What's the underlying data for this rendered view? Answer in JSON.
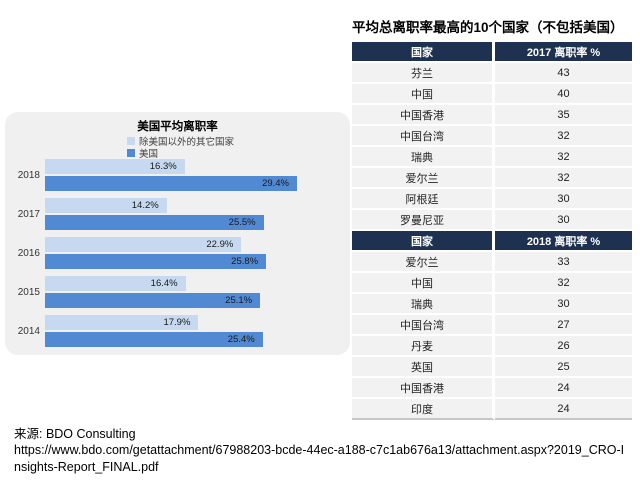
{
  "page": {
    "source_label": "来源: BDO Consulting",
    "source_url": "https://www.bdo.com/getattachment/67988203-bcde-44ec-a188-c7c1ab676a13/attachment.aspx?2019_CRO-Insights-Report_FINAL.pdf"
  },
  "colors": {
    "header_navy": "#1f3151",
    "row_gray": "#f2f2f2",
    "panel_gray": "#f0f0f0",
    "bar_light_blue": "#c6d9f0",
    "bar_dark_blue": "#5189d3"
  },
  "chart_data": [
    {
      "type": "bar",
      "orientation": "horizontal",
      "title": "美国平均离职率",
      "categories": [
        "2018",
        "2017",
        "2016",
        "2015",
        "2014"
      ],
      "series": [
        {
          "name": "除美国以外的其它国家",
          "values": [
            16.3,
            14.2,
            22.9,
            16.4,
            17.9
          ]
        },
        {
          "name": "美国",
          "values": [
            29.4,
            25.5,
            25.8,
            25.1,
            25.4
          ]
        }
      ],
      "value_format": "percent",
      "data_labels": true,
      "xlim": [
        0,
        30
      ],
      "legend_position": "top",
      "grid": false
    },
    {
      "type": "table",
      "title": "平均总离职率最高的10个国家（不包括美国）",
      "sections": [
        {
          "columns": [
            "国家",
            "2017 离职率 %"
          ],
          "rows": [
            [
              "芬兰",
              43
            ],
            [
              "中国",
              40
            ],
            [
              "中国香港",
              35
            ],
            [
              "中国台湾",
              32
            ],
            [
              "瑞典",
              32
            ],
            [
              "爱尔兰",
              32
            ],
            [
              "阿根廷",
              30
            ],
            [
              "罗曼尼亚",
              30
            ]
          ]
        },
        {
          "columns": [
            "国家",
            "2018 离职率 %"
          ],
          "rows": [
            [
              "爱尔兰",
              33
            ],
            [
              "中国",
              32
            ],
            [
              "瑞典",
              30
            ],
            [
              "中国台湾",
              27
            ],
            [
              "丹麦",
              26
            ],
            [
              "英国",
              25
            ],
            [
              "中国香港",
              24
            ],
            [
              "印度",
              24
            ]
          ]
        }
      ]
    }
  ]
}
